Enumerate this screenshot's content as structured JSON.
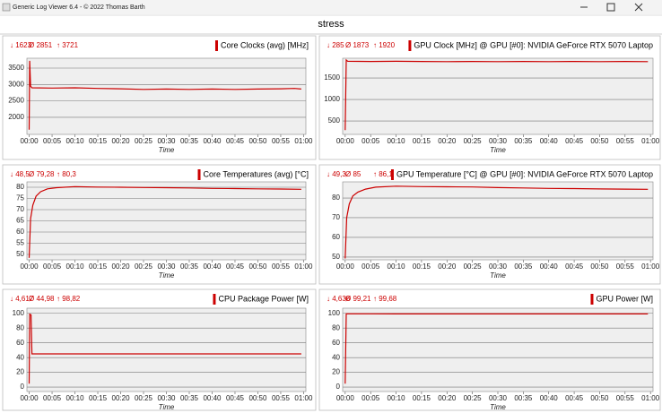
{
  "window_title": "Generic Log Viewer 6.4 - © 2022 Thomas Barth",
  "header": "stress",
  "chart_data": [
    {
      "type": "line",
      "title": "Core Clocks (avg) [MHz]",
      "stats": [
        "↓ 1623",
        "Ø 2851",
        "↑ 3721"
      ],
      "x_label": "Time",
      "x": [
        0,
        0.1,
        0.3,
        0.6,
        5,
        10,
        15,
        20,
        25,
        30,
        35,
        40,
        45,
        50,
        55,
        58,
        59.5
      ],
      "series": [
        {
          "name": "Core Clocks (avg) [MHz]",
          "color": "#cc0000",
          "values": [
            1623,
            3721,
            2950,
            2900,
            2890,
            2900,
            2880,
            2870,
            2850,
            2860,
            2850,
            2860,
            2850,
            2860,
            2870,
            2880,
            2860
          ]
        }
      ],
      "xlim": [
        -0.5,
        60.5
      ],
      "xticks": [
        {
          "value": 0,
          "label": "00:00"
        },
        {
          "value": 5,
          "label": "00:05"
        },
        {
          "value": 10,
          "label": "00:10"
        },
        {
          "value": 15,
          "label": "00:15"
        },
        {
          "value": 20,
          "label": "00:20"
        },
        {
          "value": 25,
          "label": "00:25"
        },
        {
          "value": 30,
          "label": "00:30"
        },
        {
          "value": 35,
          "label": "00:35"
        },
        {
          "value": 40,
          "label": "00:40"
        },
        {
          "value": 45,
          "label": "00:45"
        },
        {
          "value": 50,
          "label": "00:50"
        },
        {
          "value": 55,
          "label": "00:55"
        },
        {
          "value": 60,
          "label": "01:00"
        }
      ],
      "ylim": [
        1480,
        3800
      ],
      "yticks": [
        2000,
        2500,
        3000,
        3500
      ],
      "grid": true
    },
    {
      "type": "line",
      "title": "GPU Clock [MHz] @ GPU [#0]: NVIDIA GeForce RTX 5070 Laptop",
      "stats": [
        "↓ 285",
        "Ø 1873",
        "↑ 1920"
      ],
      "x_label": "Time",
      "x": [
        0,
        0.2,
        0.5,
        5,
        10,
        15,
        20,
        25,
        30,
        35,
        40,
        45,
        50,
        55,
        59.5
      ],
      "series": [
        {
          "name": "GPU Clock [MHz]",
          "color": "#cc0000",
          "values": [
            285,
            1920,
            1890,
            1885,
            1890,
            1885,
            1880,
            1885,
            1880,
            1885,
            1880,
            1885,
            1880,
            1885,
            1880
          ]
        }
      ],
      "xlim": [
        -0.5,
        60.5
      ],
      "xticks": [
        {
          "value": 0,
          "label": "00:00"
        },
        {
          "value": 5,
          "label": "00:05"
        },
        {
          "value": 10,
          "label": "00:10"
        },
        {
          "value": 15,
          "label": "00:15"
        },
        {
          "value": 20,
          "label": "00:20"
        },
        {
          "value": 25,
          "label": "00:25"
        },
        {
          "value": 30,
          "label": "00:30"
        },
        {
          "value": 35,
          "label": "00:35"
        },
        {
          "value": 40,
          "label": "00:40"
        },
        {
          "value": 45,
          "label": "00:45"
        },
        {
          "value": 50,
          "label": "00:50"
        },
        {
          "value": 55,
          "label": "00:55"
        },
        {
          "value": 60,
          "label": "01:00"
        }
      ],
      "ylim": [
        188,
        1960
      ],
      "yticks": [
        500,
        1000,
        1500
      ],
      "grid": true
    },
    {
      "type": "line",
      "title": "Core Temperatures (avg) [°C]",
      "stats": [
        "↓ 48,5",
        "Ø 79,28",
        "↑ 80,3"
      ],
      "x_label": "Time",
      "x": [
        0,
        0.3,
        0.8,
        1.5,
        2.5,
        4,
        6,
        10,
        15,
        20,
        25,
        30,
        35,
        40,
        45,
        50,
        55,
        59.5
      ],
      "series": [
        {
          "name": "Core Temperatures (avg) [°C]",
          "color": "#cc0000",
          "values": [
            48.5,
            66,
            72,
            76,
            78,
            79.3,
            79.8,
            80.3,
            80.1,
            80,
            79.9,
            79.8,
            79.7,
            79.5,
            79.4,
            79.3,
            79.2,
            79.1
          ]
        }
      ],
      "xlim": [
        -0.5,
        60.5
      ],
      "xticks": [
        {
          "value": 0,
          "label": "00:00"
        },
        {
          "value": 5,
          "label": "00:05"
        },
        {
          "value": 10,
          "label": "00:10"
        },
        {
          "value": 15,
          "label": "00:15"
        },
        {
          "value": 20,
          "label": "00:20"
        },
        {
          "value": 25,
          "label": "00:25"
        },
        {
          "value": 30,
          "label": "00:30"
        },
        {
          "value": 35,
          "label": "00:35"
        },
        {
          "value": 40,
          "label": "00:40"
        },
        {
          "value": 45,
          "label": "00:45"
        },
        {
          "value": 50,
          "label": "00:50"
        },
        {
          "value": 55,
          "label": "00:55"
        },
        {
          "value": 60,
          "label": "01:00"
        }
      ],
      "ylim": [
        47.6,
        82.4
      ],
      "yticks": [
        50,
        55,
        60,
        65,
        70,
        75,
        80
      ],
      "grid": true
    },
    {
      "type": "line",
      "title": "GPU Temperature [°C] @ GPU [#0]: NVIDIA GeForce RTX 5070 Laptop",
      "stats": [
        "↓ 49,3",
        "Ø 85",
        "↑ 86,1"
      ],
      "x_label": "Time",
      "x": [
        0,
        0.3,
        0.8,
        1.5,
        2.5,
        4,
        6,
        10,
        15,
        20,
        25,
        30,
        35,
        40,
        45,
        50,
        55,
        59.5
      ],
      "series": [
        {
          "name": "GPU Temperature [°C]",
          "color": "#cc0000",
          "values": [
            49.3,
            70,
            77,
            81,
            83,
            84.5,
            85.5,
            86,
            85.8,
            85.7,
            85.6,
            85.3,
            85.1,
            84.9,
            84.8,
            84.6,
            84.5,
            84.4
          ]
        }
      ],
      "xlim": [
        -0.5,
        60.5
      ],
      "xticks": [
        {
          "value": 0,
          "label": "00:00"
        },
        {
          "value": 5,
          "label": "00:05"
        },
        {
          "value": 10,
          "label": "00:10"
        },
        {
          "value": 15,
          "label": "00:15"
        },
        {
          "value": 20,
          "label": "00:20"
        },
        {
          "value": 25,
          "label": "00:25"
        },
        {
          "value": 30,
          "label": "00:30"
        },
        {
          "value": 35,
          "label": "00:35"
        },
        {
          "value": 40,
          "label": "00:40"
        },
        {
          "value": 45,
          "label": "00:45"
        },
        {
          "value": 50,
          "label": "00:50"
        },
        {
          "value": 55,
          "label": "00:55"
        },
        {
          "value": 60,
          "label": "01:00"
        }
      ],
      "ylim": [
        48.6,
        88.2
      ],
      "yticks": [
        50,
        60,
        70,
        80
      ],
      "grid": true
    },
    {
      "type": "line",
      "title": "CPU Package Power [W]",
      "stats": [
        "↓ 4,617",
        "Ø 44,98",
        "↑ 98,82"
      ],
      "x_label": "Time",
      "x": [
        0,
        0.1,
        0.4,
        0.6,
        10,
        20,
        30,
        40,
        50,
        59.5
      ],
      "series": [
        {
          "name": "CPU Package Power [W]",
          "color": "#cc0000",
          "values": [
            4.617,
            98.82,
            98,
            45,
            45,
            45,
            45,
            45,
            45,
            45
          ]
        }
      ],
      "xlim": [
        -0.5,
        60.5
      ],
      "xticks": [
        {
          "value": 0,
          "label": "00:00"
        },
        {
          "value": 5,
          "label": "00:05"
        },
        {
          "value": 10,
          "label": "00:10"
        },
        {
          "value": 15,
          "label": "00:15"
        },
        {
          "value": 20,
          "label": "00:20"
        },
        {
          "value": 25,
          "label": "00:25"
        },
        {
          "value": 30,
          "label": "00:30"
        },
        {
          "value": 35,
          "label": "00:35"
        },
        {
          "value": 40,
          "label": "00:40"
        },
        {
          "value": 45,
          "label": "00:45"
        },
        {
          "value": 50,
          "label": "00:50"
        },
        {
          "value": 55,
          "label": "00:55"
        },
        {
          "value": 60,
          "label": "01:00"
        }
      ],
      "ylim": [
        -6,
        107
      ],
      "yticks": [
        0,
        20,
        40,
        60,
        80,
        100
      ],
      "grid": true
    },
    {
      "type": "line",
      "title": "GPU Power [W]",
      "stats": [
        "↓ 4,636",
        "Ø 99,21",
        "↑ 99,68"
      ],
      "x_label": "Time",
      "x": [
        0,
        0.2,
        10,
        20,
        30,
        40,
        50,
        59.5
      ],
      "series": [
        {
          "name": "GPU Power [W]",
          "color": "#cc0000",
          "values": [
            4.636,
            99.5,
            99.2,
            99.2,
            99.2,
            99.2,
            99.2,
            99.2
          ]
        }
      ],
      "xlim": [
        -0.5,
        60.5
      ],
      "xticks": [
        {
          "value": 0,
          "label": "00:00"
        },
        {
          "value": 5,
          "label": "00:05"
        },
        {
          "value": 10,
          "label": "00:10"
        },
        {
          "value": 15,
          "label": "00:15"
        },
        {
          "value": 20,
          "label": "00:20"
        },
        {
          "value": 25,
          "label": "00:25"
        },
        {
          "value": 30,
          "label": "00:30"
        },
        {
          "value": 35,
          "label": "00:35"
        },
        {
          "value": 40,
          "label": "00:40"
        },
        {
          "value": 45,
          "label": "00:45"
        },
        {
          "value": 50,
          "label": "00:50"
        },
        {
          "value": 55,
          "label": "00:55"
        },
        {
          "value": 60,
          "label": "01:00"
        }
      ],
      "ylim": [
        -6,
        107
      ],
      "yticks": [
        0,
        20,
        40,
        60,
        80,
        100
      ],
      "grid": true
    }
  ]
}
